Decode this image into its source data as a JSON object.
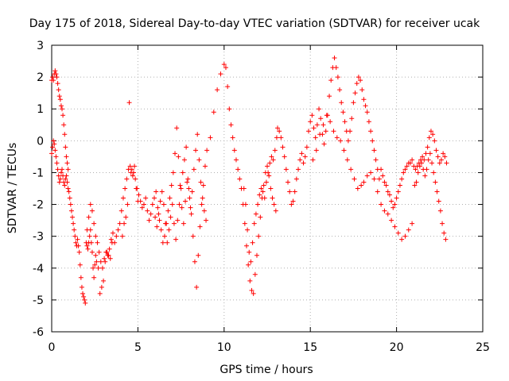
{
  "chart_data": {
    "type": "scatter",
    "title": "Day 175 of 2018, Sidereal Day-to-day VTEC variation (SDTVAR) for receiver ucak",
    "xlabel": "GPS time / hours",
    "ylabel": "SDTVAR / TECUs",
    "xlim": [
      0,
      25
    ],
    "ylim": [
      -6,
      3
    ],
    "xticks": [
      0,
      5,
      10,
      15,
      20,
      25
    ],
    "yticks": [
      -6,
      -5,
      -4,
      -3,
      -2,
      -1,
      0,
      1,
      2,
      3
    ],
    "xtick_labels": [
      "0",
      "5",
      "10",
      "15",
      "20",
      "25"
    ],
    "ytick_labels": [
      "-6",
      "-5",
      "-4",
      "-3",
      "-2",
      "-1",
      "0",
      "1",
      "2",
      "3"
    ],
    "grid": true,
    "marker": "+",
    "series": [
      {
        "name": "SDTVAR",
        "color": "#ff0000",
        "x": [
          0.0,
          0.05,
          0.1,
          0.15,
          0.2,
          0.25,
          0.3,
          0.35,
          0.4,
          0.45,
          0.5,
          0.55,
          0.6,
          0.65,
          0.7,
          0.75,
          0.8,
          0.85,
          0.9,
          0.95,
          0.0,
          0.05,
          0.1,
          0.15,
          0.2,
          0.25,
          0.3,
          0.35,
          0.4,
          0.45,
          0.5,
          0.55,
          0.6,
          0.65,
          0.7,
          0.75,
          0.8,
          0.85,
          0.9,
          0.95,
          1.0,
          1.05,
          1.1,
          1.15,
          1.2,
          1.25,
          1.3,
          1.35,
          1.4,
          1.45,
          1.5,
          1.55,
          1.6,
          1.65,
          1.7,
          1.75,
          1.8,
          1.85,
          1.9,
          1.95,
          2.0,
          2.05,
          2.1,
          2.15,
          2.2,
          2.25,
          2.3,
          2.35,
          2.4,
          2.45,
          2.5,
          2.55,
          2.6,
          2.7,
          2.8,
          2.9,
          3.0,
          3.1,
          3.2,
          3.3,
          3.4,
          3.5,
          2.05,
          2.15,
          2.25,
          2.35,
          2.45,
          2.55,
          2.65,
          2.75,
          2.85,
          2.95,
          3.05,
          3.15,
          3.25,
          3.35,
          3.45,
          3.55,
          3.65,
          3.75,
          3.85,
          3.95,
          4.05,
          4.15,
          4.25,
          4.35,
          4.45,
          4.55,
          4.65,
          4.75,
          4.85,
          4.95,
          5.05,
          5.15,
          5.25,
          5.35,
          5.45,
          5.55,
          5.65,
          5.75,
          5.85,
          5.95,
          4.1,
          4.2,
          4.3,
          4.4,
          4.5,
          4.6,
          4.7,
          4.8,
          4.9,
          5.0,
          6.0,
          6.1,
          6.2,
          6.3,
          6.4,
          6.5,
          6.6,
          6.7,
          6.8,
          6.9,
          7.0,
          7.1,
          7.2,
          7.3,
          7.4,
          7.5,
          7.6,
          7.7,
          7.8,
          7.9,
          8.0,
          8.1,
          8.2,
          8.3,
          8.4,
          8.5,
          8.6,
          8.7,
          8.8,
          8.9,
          6.05,
          6.15,
          6.25,
          6.35,
          6.45,
          6.55,
          6.65,
          6.75,
          6.85,
          6.95,
          7.05,
          7.15,
          7.25,
          7.35,
          7.45,
          7.55,
          7.65,
          7.75,
          7.85,
          7.95,
          8.05,
          8.15,
          8.25,
          8.35,
          8.45,
          8.55,
          8.65,
          8.75,
          8.85,
          8.95,
          9.0,
          9.2,
          9.4,
          9.6,
          9.8,
          10.0,
          10.1,
          10.2,
          10.3,
          10.4,
          10.5,
          10.6,
          10.7,
          10.8,
          10.9,
          11.0,
          11.1,
          11.2,
          11.3,
          11.4,
          11.5,
          11.6,
          11.7,
          11.8,
          11.9,
          12.0,
          12.1,
          12.2,
          12.3,
          12.4,
          12.5,
          12.6,
          12.7,
          12.8,
          12.9,
          13.0,
          11.15,
          11.25,
          11.35,
          11.45,
          11.55,
          11.65,
          11.75,
          11.85,
          11.95,
          12.05,
          12.15,
          12.25,
          12.35,
          12.45,
          12.55,
          12.65,
          12.75,
          12.85,
          12.95,
          13.05,
          13.1,
          13.2,
          13.3,
          13.4,
          13.5,
          13.6,
          13.7,
          13.8,
          13.9,
          14.0,
          14.1,
          14.2,
          14.3,
          14.4,
          14.5,
          14.6,
          14.7,
          14.8,
          14.9,
          15.0,
          15.1,
          15.2,
          15.3,
          15.4,
          15.5,
          15.6,
          15.7,
          15.8,
          15.9,
          16.0,
          16.1,
          16.2,
          16.3,
          16.4,
          16.5,
          16.6,
          16.7,
          16.8,
          16.9,
          17.0,
          17.1,
          17.2,
          17.3,
          17.4,
          17.5,
          17.6,
          17.7,
          17.8,
          17.9,
          18.0,
          18.1,
          18.2,
          18.3,
          18.4,
          18.5,
          18.6,
          18.7,
          18.8,
          18.9,
          19.0,
          15.15,
          15.35,
          15.55,
          15.75,
          15.95,
          16.15,
          16.35,
          16.55,
          16.75,
          16.95,
          17.15,
          17.35,
          17.55,
          17.75,
          17.95,
          18.1,
          18.3,
          18.5,
          18.7,
          18.9,
          19.1,
          19.3,
          19.5,
          19.7,
          19.9,
          20.1,
          20.3,
          20.5,
          20.7,
          20.9,
          19.1,
          19.2,
          19.3,
          19.4,
          19.5,
          19.6,
          19.7,
          19.8,
          19.9,
          20.0,
          20.1,
          20.2,
          20.3,
          20.4,
          20.5,
          20.6,
          20.7,
          20.8,
          20.9,
          21.0,
          21.1,
          21.2,
          21.3,
          21.4,
          21.5,
          21.6,
          21.7,
          21.8,
          21.9,
          22.0,
          22.1,
          22.2,
          22.3,
          22.4,
          22.5,
          22.6,
          22.7,
          22.8,
          22.9,
          21.05,
          21.15,
          21.25,
          21.35,
          21.45,
          21.55,
          21.65,
          21.75,
          21.85,
          21.95,
          22.05,
          22.15,
          22.25,
          22.35,
          22.45,
          22.55,
          22.65,
          22.75,
          22.85
        ],
        "y": [
          1.9,
          2.0,
          1.9,
          2.1,
          2.2,
          2.1,
          2.0,
          1.8,
          1.6,
          1.4,
          1.3,
          1.1,
          1.0,
          0.8,
          0.5,
          0.2,
          -0.2,
          -0.5,
          -0.7,
          -0.9,
          -0.4,
          -0.2,
          0.0,
          -0.1,
          -0.3,
          -0.5,
          -0.7,
          -0.9,
          -1.1,
          -1.3,
          -1.2,
          -1.0,
          -0.9,
          -1.1,
          -1.3,
          -1.4,
          -1.2,
          -1.1,
          -1.3,
          -1.5,
          -1.6,
          -1.8,
          -2.0,
          -2.2,
          -2.4,
          -2.6,
          -2.8,
          -3.0,
          -3.2,
          -3.3,
          -3.1,
          -3.3,
          -3.5,
          -3.9,
          -4.3,
          -4.6,
          -4.8,
          -4.9,
          -5.0,
          -5.1,
          -3.2,
          -3.3,
          -3.4,
          -3.2,
          -3.0,
          -2.8,
          -3.2,
          -3.5,
          -4.0,
          -4.3,
          -3.9,
          -3.6,
          -3.8,
          -4.0,
          -4.8,
          -4.6,
          -4.4,
          -3.8,
          -3.5,
          -3.6,
          -3.7,
          -3.2,
          -2.8,
          -2.4,
          -2.0,
          -2.2,
          -2.6,
          -3.0,
          -3.2,
          -3.5,
          -3.8,
          -4.0,
          -3.7,
          -3.5,
          -3.6,
          -3.4,
          -3.1,
          -2.9,
          -3.2,
          -3.0,
          -2.8,
          -2.6,
          -2.2,
          -1.8,
          -1.5,
          -1.2,
          -0.9,
          -0.8,
          -0.9,
          -1.0,
          -1.2,
          -1.5,
          -1.7,
          -1.9,
          -2.1,
          -2.0,
          -1.8,
          -2.2,
          -2.5,
          -2.3,
          -2.0,
          -1.8,
          -3.0,
          -2.6,
          -2.4,
          -2.0,
          1.2,
          -1.0,
          -1.1,
          -0.8,
          -1.5,
          -1.9,
          -2.4,
          -2.7,
          -2.3,
          -1.9,
          -1.6,
          -2.0,
          -2.6,
          -3.2,
          -2.8,
          -2.4,
          -2.0,
          -2.6,
          -3.1,
          -2.5,
          -2.0,
          -1.5,
          -1.0,
          -0.6,
          -0.2,
          -1.2,
          -1.8,
          -2.3,
          -3.0,
          -3.8,
          -4.6,
          -3.6,
          -2.7,
          -2.0,
          -1.4,
          -0.8,
          -1.6,
          -2.1,
          -2.5,
          -2.8,
          -3.2,
          -3.0,
          -2.6,
          -2.2,
          -1.8,
          -1.4,
          -1.0,
          -0.4,
          0.4,
          -0.5,
          -1.4,
          -2.1,
          -2.6,
          -1.9,
          -1.3,
          -1.5,
          -2.1,
          -1.6,
          -0.9,
          -0.3,
          0.2,
          -0.6,
          -1.3,
          -1.8,
          -2.2,
          -2.5,
          -0.3,
          0.1,
          0.9,
          1.6,
          2.1,
          2.4,
          2.3,
          1.7,
          1.0,
          0.5,
          0.1,
          -0.3,
          -0.6,
          -0.9,
          -1.2,
          -1.5,
          -2.0,
          -2.6,
          -3.3,
          -3.9,
          -4.4,
          -4.7,
          -4.8,
          -4.2,
          -3.6,
          -3.0,
          -2.4,
          -1.8,
          -1.4,
          -1.0,
          -0.8,
          -1.1,
          -1.5,
          -1.8,
          -2.0,
          -2.2,
          -1.5,
          -2.0,
          -2.8,
          -3.5,
          -3.8,
          -3.2,
          -2.6,
          -2.3,
          -2.0,
          -1.7,
          -1.5,
          -1.6,
          -1.8,
          -1.3,
          -1.0,
          -0.7,
          -0.5,
          -0.6,
          -0.3,
          0.1,
          0.4,
          0.3,
          0.1,
          -0.2,
          -0.5,
          -0.9,
          -1.3,
          -1.6,
          -2.0,
          -1.9,
          -1.6,
          -1.2,
          -0.9,
          -0.6,
          -0.4,
          -0.7,
          -0.5,
          -0.2,
          0.3,
          0.6,
          0.8,
          0.4,
          0.1,
          0.5,
          1.0,
          0.7,
          0.2,
          -0.1,
          0.3,
          0.8,
          1.4,
          1.9,
          2.3,
          2.6,
          2.3,
          2.0,
          1.6,
          1.2,
          0.9,
          0.6,
          0.3,
          0.0,
          0.3,
          0.7,
          1.2,
          1.5,
          1.8,
          2.0,
          1.9,
          1.6,
          1.3,
          1.1,
          0.9,
          0.6,
          0.3,
          0.0,
          -0.3,
          -0.6,
          -0.9,
          -1.2,
          -0.6,
          -0.3,
          0.2,
          0.5,
          0.8,
          0.6,
          0.3,
          0.1,
          0.0,
          -0.3,
          -0.6,
          -0.9,
          -1.2,
          -1.5,
          -1.4,
          -1.3,
          -1.1,
          -1.0,
          -1.2,
          -1.6,
          -2.0,
          -2.2,
          -2.3,
          -2.5,
          -2.7,
          -2.9,
          -3.1,
          -3.0,
          -2.8,
          -2.6,
          -0.9,
          -1.1,
          -1.3,
          -1.4,
          -1.6,
          -1.7,
          -1.9,
          -2.1,
          -2.0,
          -1.8,
          -1.6,
          -1.4,
          -1.2,
          -1.0,
          -0.9,
          -0.8,
          -0.7,
          -0.7,
          -0.6,
          -0.8,
          -0.9,
          -0.8,
          -0.7,
          -0.6,
          -0.5,
          -0.6,
          -0.4,
          -0.2,
          0.1,
          0.3,
          0.2,
          0.0,
          -0.3,
          -0.5,
          -0.7,
          -0.6,
          -0.4,
          -0.5,
          -0.7,
          -1.4,
          -1.3,
          -1.0,
          -0.8,
          -0.7,
          -0.9,
          -1.1,
          -0.9,
          -0.6,
          -0.4,
          -0.7,
          -1.0,
          -1.3,
          -1.6,
          -1.9,
          -2.2,
          -2.6,
          -2.9,
          -3.1
        ]
      }
    ]
  }
}
